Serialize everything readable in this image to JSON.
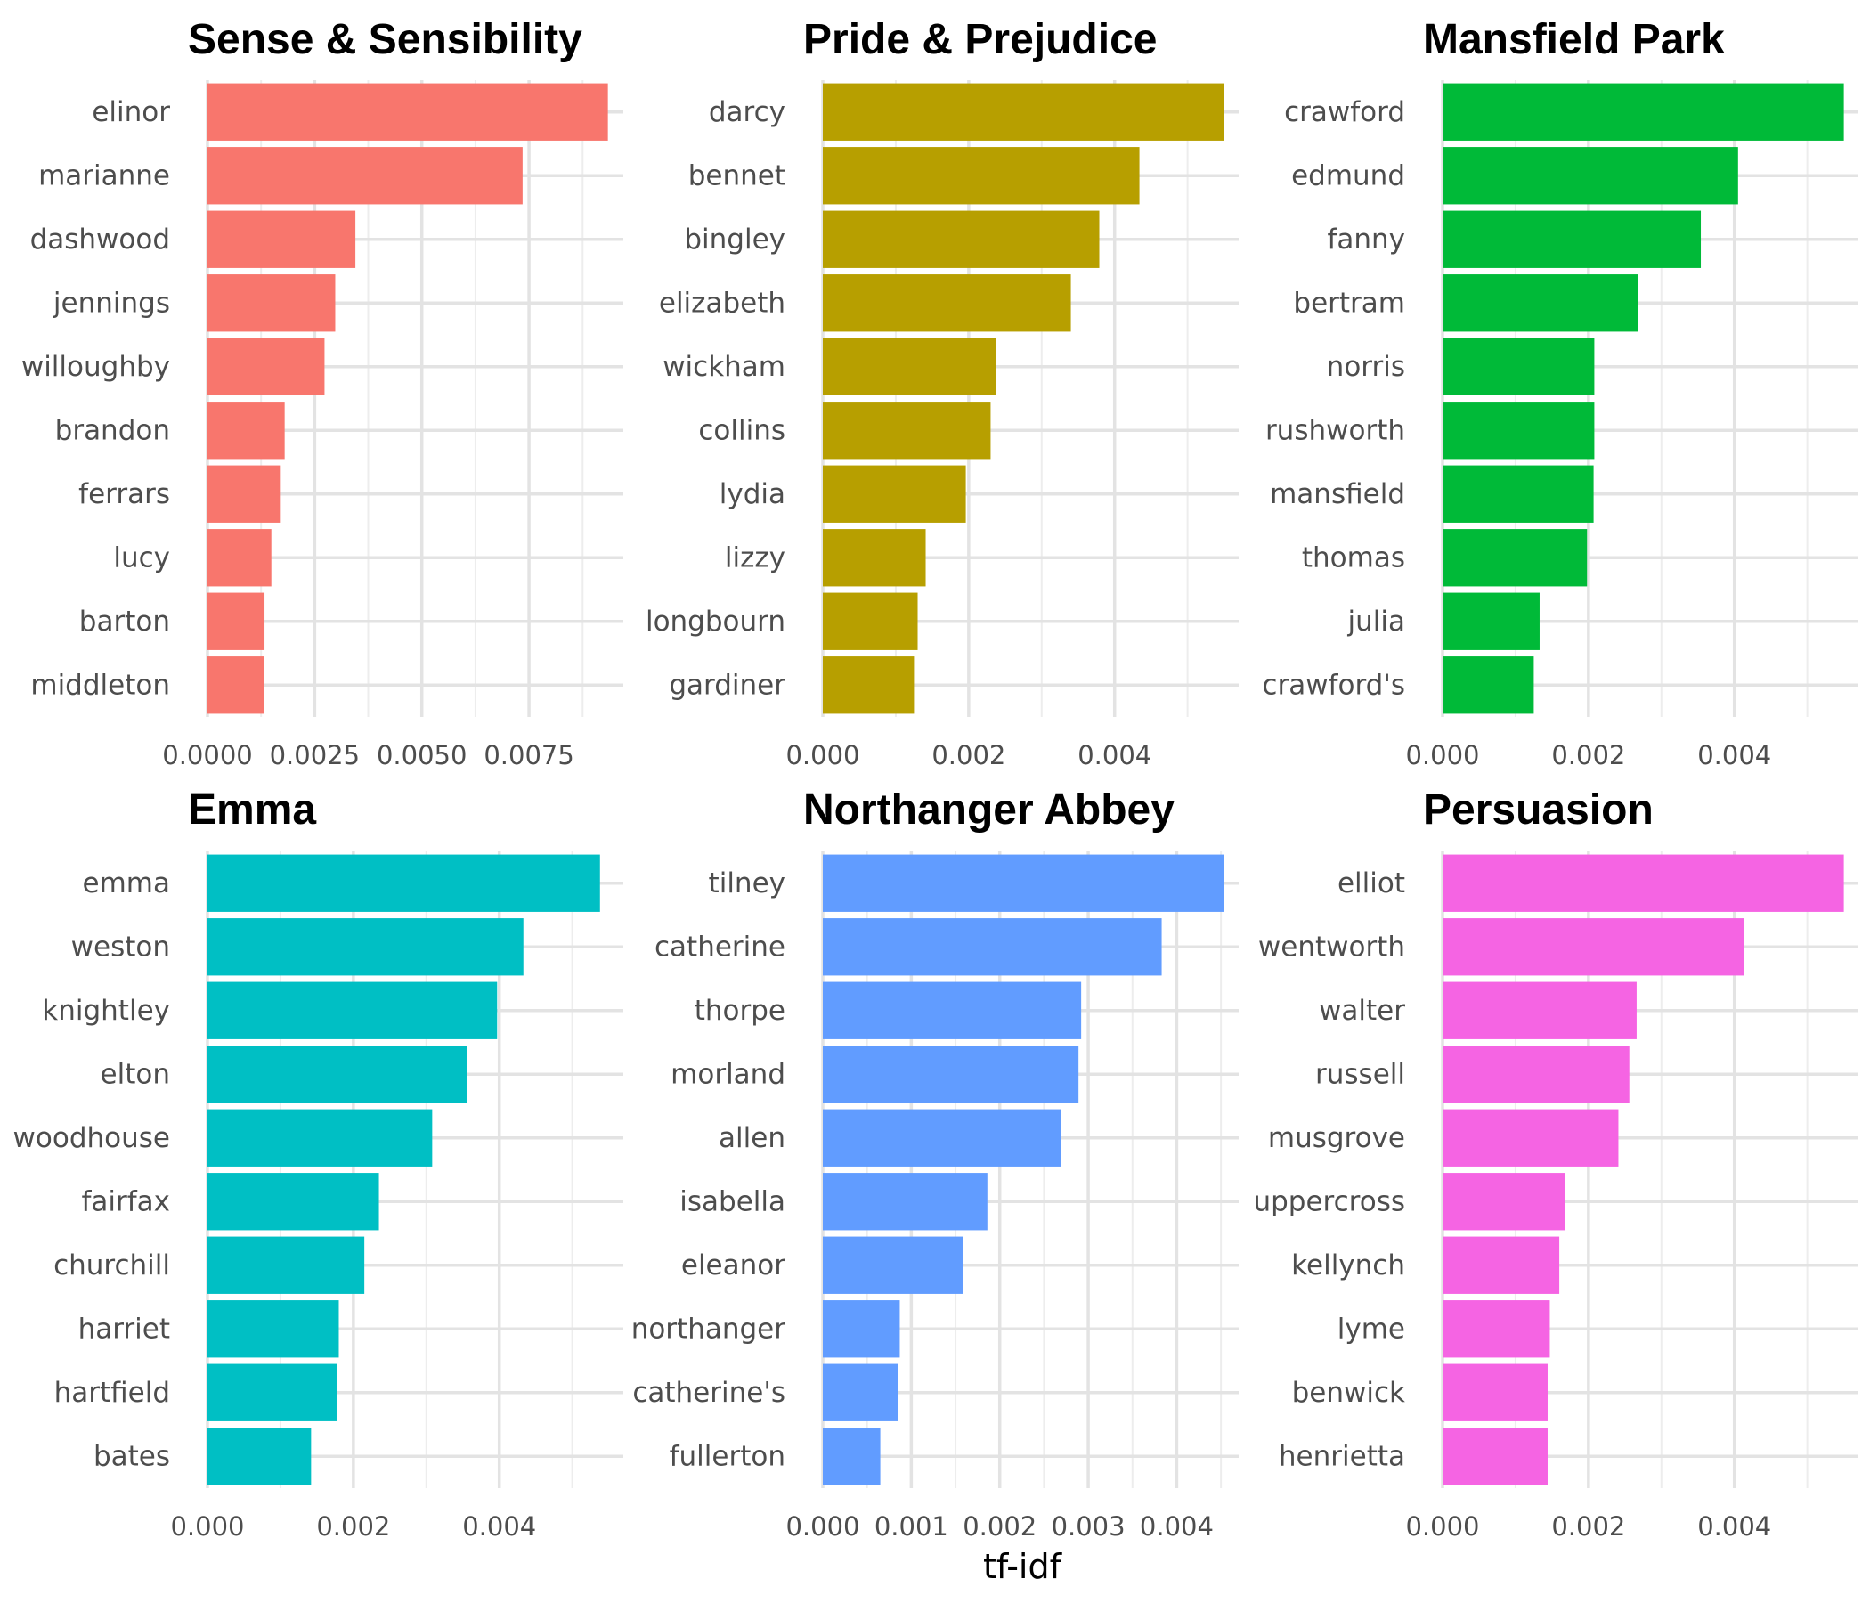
{
  "chart_data": {
    "type": "bar",
    "orientation": "horizontal",
    "xlabel": "tf-idf",
    "ylabel": "",
    "grid": true,
    "legend": "none",
    "panels": [
      {
        "title": "Sense & Sensibility",
        "color": "#F8766D",
        "xlim": [
          0,
          0.0097
        ],
        "ticks": [
          0,
          0.0025,
          0.005,
          0.0075
        ],
        "tick_labels": [
          "0.0000",
          "0.0025",
          "0.0050",
          "0.0075"
        ],
        "categories": [
          "elinor",
          "marianne",
          "dashwood",
          "jennings",
          "willoughby",
          "brandon",
          "ferrars",
          "lucy",
          "barton",
          "middleton"
        ],
        "values": [
          0.00934,
          0.00735,
          0.00345,
          0.00298,
          0.00273,
          0.0018,
          0.00171,
          0.00149,
          0.00133,
          0.00131
        ]
      },
      {
        "title": "Pride & Prejudice",
        "color": "#B79F00",
        "xlim": [
          0,
          0.0057
        ],
        "ticks": [
          0,
          0.002,
          0.004
        ],
        "tick_labels": [
          "0.000",
          "0.002",
          "0.004"
        ],
        "categories": [
          "darcy",
          "bennet",
          "bingley",
          "elizabeth",
          "wickham",
          "collins",
          "lydia",
          "lizzy",
          "longbourn",
          "gardiner"
        ],
        "values": [
          0.0055,
          0.00434,
          0.00379,
          0.0034,
          0.00238,
          0.0023,
          0.00196,
          0.00141,
          0.0013,
          0.00125
        ]
      },
      {
        "title": "Mansfield Park",
        "color": "#00BA38",
        "xlim": [
          0,
          0.0057
        ],
        "ticks": [
          0,
          0.002,
          0.004
        ],
        "tick_labels": [
          "0.000",
          "0.002",
          "0.004"
        ],
        "categories": [
          "crawford",
          "edmund",
          "fanny",
          "bertram",
          "norris",
          "rushworth",
          "mansfield",
          "thomas",
          "julia",
          "crawford's"
        ],
        "values": [
          0.0055,
          0.00405,
          0.00354,
          0.00268,
          0.00208,
          0.00208,
          0.00207,
          0.00198,
          0.00133,
          0.00125
        ]
      },
      {
        "title": "Emma",
        "color": "#00BFC4",
        "xlim": [
          0,
          0.0057
        ],
        "ticks": [
          0,
          0.002,
          0.004
        ],
        "tick_labels": [
          "0.000",
          "0.002",
          "0.004"
        ],
        "categories": [
          "emma",
          "weston",
          "knightley",
          "elton",
          "woodhouse",
          "fairfax",
          "churchill",
          "harriet",
          "hartfield",
          "bates"
        ],
        "values": [
          0.00538,
          0.00433,
          0.00397,
          0.00356,
          0.00308,
          0.00235,
          0.00215,
          0.0018,
          0.00178,
          0.00142
        ]
      },
      {
        "title": "Northanger Abbey",
        "color": "#619CFF",
        "xlim": [
          0,
          0.0047
        ],
        "ticks": [
          0,
          0.001,
          0.002,
          0.003,
          0.004
        ],
        "tick_labels": [
          "0.000",
          "0.001",
          "0.002",
          "0.003",
          "0.004"
        ],
        "categories": [
          "tilney",
          "catherine",
          "thorpe",
          "morland",
          "allen",
          "isabella",
          "eleanor",
          "northanger",
          "catherine's",
          "fullerton"
        ],
        "values": [
          0.00453,
          0.00383,
          0.00292,
          0.00289,
          0.00269,
          0.00186,
          0.00158,
          0.00087,
          0.00085,
          0.00065
        ]
      },
      {
        "title": "Persuasion",
        "color": "#F564E3",
        "xlim": [
          0,
          0.0057
        ],
        "ticks": [
          0,
          0.002,
          0.004
        ],
        "tick_labels": [
          "0.000",
          "0.002",
          "0.004"
        ],
        "categories": [
          "elliot",
          "wentworth",
          "walter",
          "russell",
          "musgrove",
          "uppercross",
          "kellynch",
          "lyme",
          "benwick",
          "henrietta"
        ],
        "values": [
          0.0055,
          0.00413,
          0.00266,
          0.00256,
          0.00241,
          0.00168,
          0.0016,
          0.00147,
          0.00144,
          0.00144
        ]
      }
    ]
  }
}
